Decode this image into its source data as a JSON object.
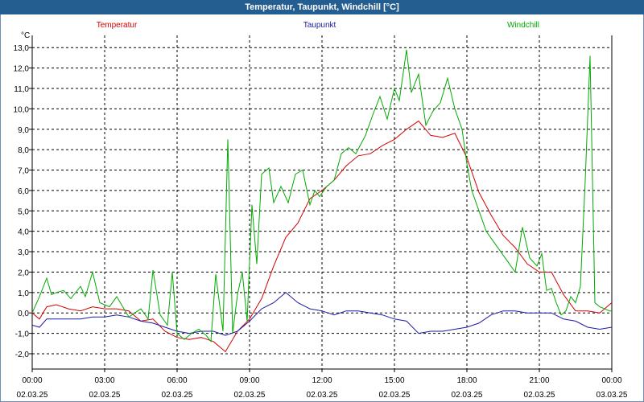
{
  "window": {
    "title": "Temperatur, Taupunkt, Windchill [°C]"
  },
  "chart_data": {
    "type": "line",
    "title": "Temperatur, Taupunkt, Windchill [°C]",
    "ylabel": "°C",
    "ylim": [
      -2.75,
      13.6
    ],
    "xlim": [
      0,
      24
    ],
    "grid": true,
    "y_ticks": [
      "-2,0",
      "-1,0",
      "0,0",
      "1,0",
      "2,0",
      "3,0",
      "4,0",
      "5,0",
      "6,0",
      "7,0",
      "8,0",
      "9,0",
      "10,0",
      "11,0",
      "12,0",
      "13,0"
    ],
    "x_ticks": [
      {
        "time": "00:00",
        "date": "02.03.25"
      },
      {
        "time": "03:00",
        "date": "02.03.25"
      },
      {
        "time": "06:00",
        "date": "02.03.25"
      },
      {
        "time": "09:00",
        "date": "02.03.25"
      },
      {
        "time": "12:00",
        "date": "02.03.25"
      },
      {
        "time": "15:00",
        "date": "02.03.25"
      },
      {
        "time": "18:00",
        "date": "02.03.25"
      },
      {
        "time": "21:00",
        "date": "02.03.25"
      },
      {
        "time": "00:00",
        "date": "03.03.25"
      }
    ],
    "series": [
      {
        "name": "Temperatur",
        "color": "#d40000",
        "x": [
          0,
          0.3,
          0.6,
          1,
          1.5,
          2,
          2.5,
          3,
          3.5,
          4,
          4.5,
          5,
          5.5,
          6,
          6.5,
          7,
          7.5,
          8,
          8.5,
          9,
          9.5,
          10,
          10.5,
          11,
          11.5,
          12,
          12.5,
          13,
          13.5,
          14,
          14.5,
          15,
          15.5,
          16,
          16.5,
          17,
          17.5,
          18,
          18.5,
          19,
          19.5,
          20,
          20.5,
          21,
          21.5,
          22,
          22.5,
          23,
          23.5,
          24
        ],
        "values": [
          0.0,
          -0.3,
          0.3,
          0.4,
          0.2,
          0.1,
          0.3,
          0.2,
          0.2,
          0.1,
          -0.4,
          -0.3,
          -0.9,
          -1.2,
          -1.3,
          -1.2,
          -1.4,
          -1.9,
          -0.9,
          -0.3,
          0.7,
          2.3,
          3.7,
          4.4,
          5.6,
          6.0,
          6.5,
          7.2,
          7.7,
          7.8,
          8.2,
          8.5,
          9.0,
          9.4,
          8.7,
          8.6,
          8.8,
          7.6,
          5.9,
          4.8,
          3.8,
          3.2,
          2.4,
          2.0,
          2.0,
          0.9,
          0.1,
          0.1,
          0.0,
          0.5
        ]
      },
      {
        "name": "Taupunkt",
        "color": "#1a1aa6",
        "x": [
          0,
          0.3,
          0.6,
          1,
          1.5,
          2,
          2.5,
          3,
          3.5,
          4,
          4.5,
          5,
          5.5,
          6,
          6.5,
          7,
          7.5,
          8,
          8.5,
          9,
          9.5,
          10,
          10.5,
          11,
          11.5,
          12,
          12.5,
          13,
          13.5,
          14,
          14.5,
          15,
          15.5,
          16,
          16.5,
          17,
          17.5,
          18,
          18.5,
          19,
          19.5,
          20,
          20.5,
          21,
          21.5,
          22,
          22.5,
          23,
          23.5,
          24
        ],
        "values": [
          -0.6,
          -0.7,
          -0.3,
          -0.3,
          -0.3,
          -0.3,
          -0.2,
          -0.2,
          -0.1,
          -0.2,
          -0.4,
          -0.5,
          -0.7,
          -0.9,
          -1.0,
          -0.9,
          -0.9,
          -1.1,
          -0.9,
          -0.4,
          0.2,
          0.5,
          1.0,
          0.5,
          0.2,
          0.1,
          -0.1,
          0.1,
          0.1,
          0.0,
          -0.1,
          -0.3,
          -0.4,
          -1.0,
          -0.9,
          -0.9,
          -0.8,
          -0.7,
          -0.5,
          -0.1,
          0.1,
          0.1,
          0.0,
          0.0,
          0.0,
          -0.3,
          -0.4,
          -0.7,
          -0.8,
          -0.7
        ]
      },
      {
        "name": "Windchill",
        "color": "#00aa00",
        "x": [
          0,
          0.3,
          0.6,
          0.8,
          1,
          1.3,
          1.6,
          2,
          2.2,
          2.5,
          2.8,
          3.2,
          3.5,
          4,
          4.5,
          4.8,
          5,
          5.3,
          5.6,
          5.8,
          6,
          6.3,
          6.6,
          6.9,
          7.2,
          7.4,
          7.6,
          7.9,
          8.1,
          8.3,
          8.5,
          8.7,
          8.9,
          9.1,
          9.3,
          9.5,
          9.8,
          10,
          10.3,
          10.6,
          10.9,
          11.2,
          11.5,
          11.7,
          11.9,
          12.2,
          12.5,
          12.8,
          13.1,
          13.4,
          13.8,
          14.1,
          14.4,
          14.7,
          15,
          15.2,
          15.5,
          15.7,
          16,
          16.3,
          16.6,
          16.9,
          17.2,
          17.5,
          17.8,
          18,
          18.2,
          18.5,
          18.8,
          19.1,
          19.4,
          19.7,
          20,
          20.3,
          20.6,
          20.9,
          21.1,
          21.3,
          21.5,
          21.7,
          21.9,
          22.1,
          22.3,
          22.5,
          22.7,
          22.9,
          23.1,
          23.3,
          23.5,
          23.7,
          23.9,
          24
        ],
        "values": [
          0.0,
          0.8,
          1.7,
          0.9,
          1.0,
          1.1,
          0.7,
          1.3,
          0.8,
          2.0,
          0.5,
          0.3,
          0.8,
          -0.2,
          0.2,
          -0.3,
          2.1,
          -0.1,
          -0.6,
          2.0,
          -1.0,
          -1.3,
          -1.0,
          -0.8,
          -1.1,
          -1.4,
          1.9,
          -0.9,
          8.5,
          -1.0,
          0.9,
          2.0,
          -0.4,
          5.3,
          2.4,
          6.8,
          7.1,
          5.4,
          6.2,
          5.4,
          6.8,
          7.0,
          5.3,
          6.0,
          5.7,
          6.2,
          6.5,
          7.8,
          8.1,
          7.8,
          8.7,
          9.7,
          10.6,
          9.5,
          11.0,
          10.4,
          12.9,
          10.8,
          11.7,
          9.2,
          9.9,
          10.3,
          11.5,
          10.0,
          9.0,
          7.3,
          6.0,
          5.0,
          4.0,
          3.5,
          3.0,
          2.5,
          2.0,
          4.2,
          2.7,
          2.3,
          2.9,
          1.1,
          1.2,
          0.5,
          -0.1,
          0.1,
          0.8,
          0.5,
          1.3,
          6.5,
          12.6,
          0.5,
          0.3,
          0.2,
          0.1,
          0.1
        ]
      }
    ]
  }
}
